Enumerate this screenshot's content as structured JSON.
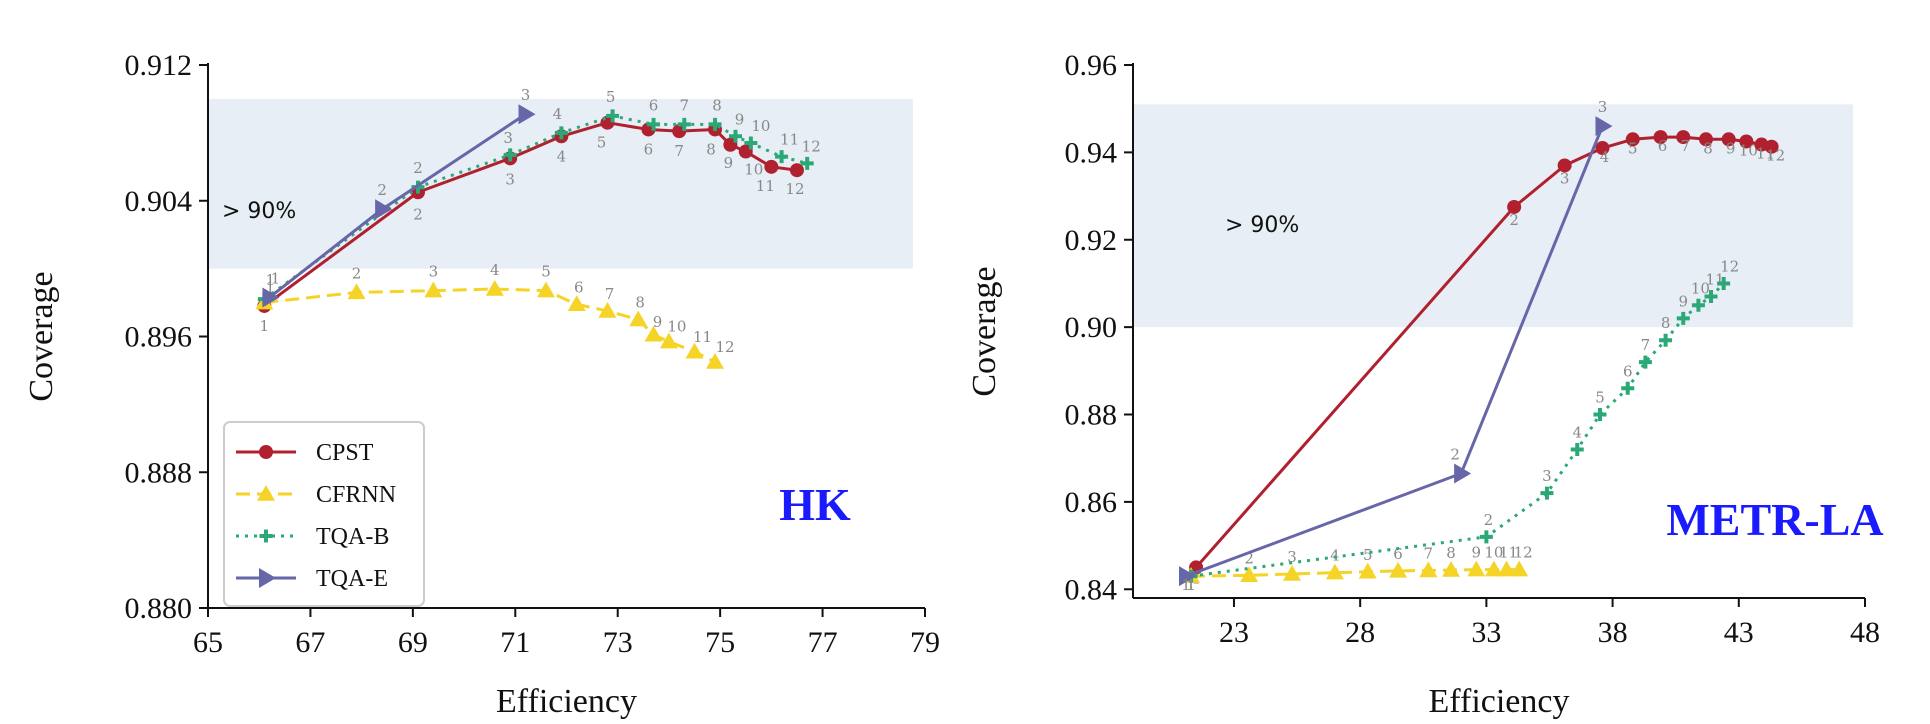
{
  "chart_data": [
    {
      "type": "line",
      "panel_label": "HK",
      "xlabel": "Efficiency",
      "ylabel": "Coverage",
      "xlim": [
        65,
        79
      ],
      "ylim": [
        0.88,
        0.912
      ],
      "xticks": [
        "65",
        "67",
        "69",
        "71",
        "73",
        "75",
        "77",
        "79"
      ],
      "yticks": [
        "0.880",
        "0.888",
        "0.896",
        "0.904",
        "0.912"
      ],
      "band": {
        "from": 0.9,
        "to": 0.91,
        "label": "> 90%",
        "color": "#e8eef5"
      },
      "legend": {
        "placement": "lower-left"
      },
      "series": [
        {
          "name": "CPST",
          "color": "#b0202e",
          "style": "solid",
          "marker": "circle",
          "x": [
            66.1,
            69.1,
            70.9,
            71.9,
            72.8,
            73.6,
            74.2,
            74.9,
            75.2,
            75.5,
            76.0,
            76.5
          ],
          "y": [
            0.8978,
            0.9045,
            0.9065,
            0.9078,
            0.9086,
            0.9082,
            0.9081,
            0.9082,
            0.9073,
            0.9069,
            0.906,
            0.9058
          ],
          "labels": [
            "1",
            "2",
            "3",
            "4",
            "5",
            "6",
            "7",
            "8",
            "9",
            "10",
            "11",
            "12"
          ]
        },
        {
          "name": "CFRNN",
          "color": "#f5d327",
          "style": "dashed",
          "marker": "triangle",
          "x": [
            66.1,
            67.9,
            69.4,
            70.6,
            71.6,
            72.2,
            72.8,
            73.4,
            73.7,
            74.0,
            74.5,
            74.9
          ],
          "y": [
            0.898,
            0.8986,
            0.8987,
            0.8988,
            0.8987,
            0.8979,
            0.8975,
            0.897,
            0.8961,
            0.8957,
            0.8951,
            0.8945
          ],
          "labels": [
            "1",
            "2",
            "3",
            "4",
            "5",
            "6",
            "7",
            "8",
            "9",
            "10",
            "11",
            "12"
          ]
        },
        {
          "name": "TQA-B",
          "color": "#2aa876",
          "style": "dotted",
          "marker": "plus",
          "x": [
            66.1,
            69.1,
            70.9,
            71.9,
            72.9,
            73.7,
            74.3,
            74.9,
            75.3,
            75.6,
            76.2,
            76.7
          ],
          "y": [
            0.8982,
            0.9048,
            0.9067,
            0.908,
            0.909,
            0.9085,
            0.9085,
            0.9085,
            0.9078,
            0.9074,
            0.9066,
            0.9062
          ],
          "labels": [
            "1",
            "2",
            "3",
            "4",
            "5",
            "6",
            "7",
            "8",
            "9",
            "10",
            "11",
            "12"
          ]
        },
        {
          "name": "TQA-E",
          "color": "#6666a8",
          "style": "solid",
          "marker": "triangle-right",
          "x": [
            66.2,
            68.4,
            71.2
          ],
          "y": [
            0.8983,
            0.9035,
            0.9091
          ],
          "labels": [
            "1",
            "2",
            "3"
          ]
        }
      ]
    },
    {
      "type": "line",
      "panel_label": "METR-LA",
      "xlabel": "Efficiency",
      "ylabel": "Coverage",
      "xlim": [
        19,
        48
      ],
      "ylim": [
        0.838,
        0.96
      ],
      "xticks": [
        "23",
        "28",
        "33",
        "38",
        "43",
        "48"
      ],
      "yticks": [
        "0.84",
        "0.86",
        "0.88",
        "0.90",
        "0.92",
        "0.94",
        "0.96"
      ],
      "band": {
        "from": 0.9,
        "to": 0.951,
        "label": "> 90%",
        "color": "#e8eef5"
      },
      "legend": {
        "placement": "none"
      },
      "series": [
        {
          "name": "CPST",
          "color": "#b0202e",
          "style": "solid",
          "marker": "circle",
          "x": [
            21.5,
            34.1,
            36.1,
            37.6,
            38.8,
            39.9,
            40.8,
            41.7,
            42.6,
            43.3,
            43.9,
            44.3
          ],
          "y": [
            0.845,
            0.9275,
            0.937,
            0.941,
            0.943,
            0.9435,
            0.9435,
            0.943,
            0.943,
            0.9425,
            0.9418,
            0.9413
          ],
          "labels": [
            "1",
            "2",
            "3",
            "4",
            "5",
            "6",
            "7",
            "8",
            "9",
            "10",
            "11",
            "12"
          ]
        },
        {
          "name": "CFRNN",
          "color": "#f5d327",
          "style": "dashed",
          "marker": "triangle",
          "x": [
            21.3,
            23.6,
            25.3,
            27.0,
            28.3,
            29.5,
            30.7,
            31.6,
            32.6,
            33.3,
            33.8,
            34.3
          ],
          "y": [
            0.843,
            0.8432,
            0.8435,
            0.8438,
            0.844,
            0.8442,
            0.8443,
            0.8444,
            0.8445,
            0.8445,
            0.8445,
            0.8445
          ],
          "labels": [
            "1",
            "2",
            "3",
            "4",
            "5",
            "6",
            "7",
            "8",
            "9",
            "10",
            "11",
            "12"
          ]
        },
        {
          "name": "TQA-B",
          "color": "#2aa876",
          "style": "dotted",
          "marker": "plus",
          "x": [
            21.3,
            33.0,
            35.4,
            36.6,
            37.5,
            38.6,
            39.3,
            40.1,
            40.8,
            41.4,
            41.9,
            42.4
          ],
          "y": [
            0.843,
            0.852,
            0.862,
            0.872,
            0.88,
            0.886,
            0.892,
            0.897,
            0.902,
            0.905,
            0.907,
            0.91
          ],
          "labels": [
            "1",
            "2",
            "3",
            "4",
            "5",
            "6",
            "7",
            "8",
            "9",
            "10",
            "11",
            "12"
          ]
        },
        {
          "name": "TQA-E",
          "color": "#6666a8",
          "style": "solid",
          "marker": "triangle-right",
          "x": [
            21.1,
            32.0,
            37.6
          ],
          "y": [
            0.843,
            0.8665,
            0.946
          ],
          "labels": [
            "1",
            "2",
            "3"
          ]
        }
      ]
    }
  ]
}
